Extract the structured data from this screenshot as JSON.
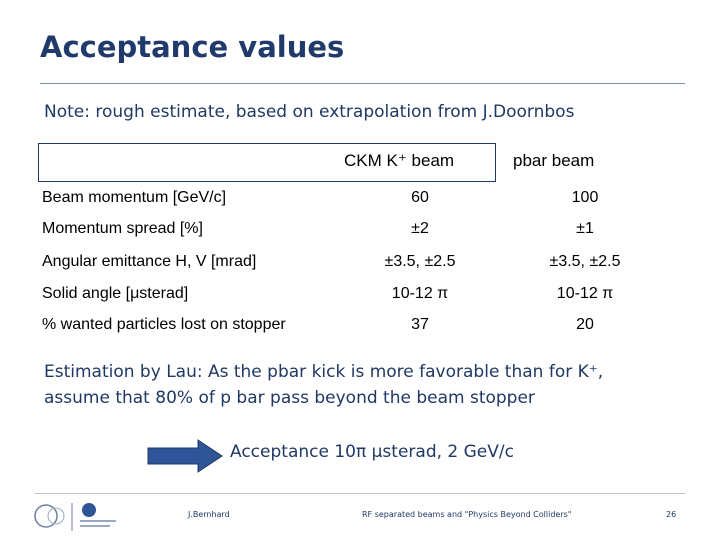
{
  "header": {
    "title": "Acceptance values",
    "note": "Note: rough estimate, based on extrapolation from J.Doornbos"
  },
  "table": {
    "columns": [
      "CKM K⁺ beam",
      "pbar beam"
    ],
    "rows": [
      [
        "Beam momentum [GeV/c]",
        "60",
        "100"
      ],
      [
        "Momentum spread [%]",
        "±2",
        "±1"
      ],
      [
        "Angular emittance H, V [mrad]",
        "±3.5, ±2.5",
        "±3.5, ±2.5"
      ],
      [
        "Solid angle [μsterad]",
        "10-12 π",
        "10-12 π"
      ],
      [
        "% wanted particles lost on stopper",
        "37",
        "20"
      ]
    ]
  },
  "body": {
    "estimation": [
      "Estimation by Lau: As the pbar kick is more favorable than for K⁺,",
      "assume that 80% of p bar pass beyond the beam stopper"
    ],
    "result": "Acceptance 10π μsterad, 2 GeV/c"
  },
  "footer": {
    "author": "J.Bernhard",
    "topic": "RF separated beams and \"Physics Beyond Colliders\"",
    "page": "26"
  }
}
